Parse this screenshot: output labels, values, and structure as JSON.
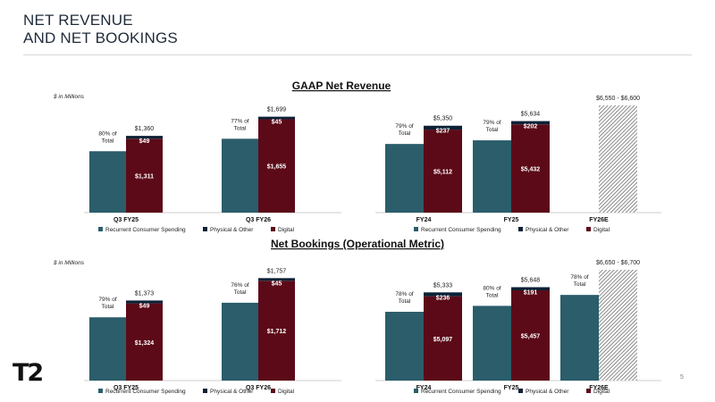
{
  "title": {
    "line1": "NET REVENUE",
    "line2": "AND NET BOOKINGS"
  },
  "logo": "T2",
  "page_number": "5",
  "colors": {
    "recurrent": "#2b5d6b",
    "physical": "#0c2136",
    "digital": "#5c0a18",
    "hatch": "#6d6d6d"
  },
  "sections": [
    {
      "heading": "GAAP Net Revenue",
      "units": "$ in Millions"
    },
    {
      "heading": "Net Bookings (Operational Metric)",
      "units": "$ in Millions"
    }
  ],
  "legend": [
    "Recurrent Consumer Spending",
    "Physical & Other",
    "Digital"
  ],
  "chart_data": [
    {
      "id": "rev-q",
      "type": "bar",
      "section": 0,
      "ymax": 1900,
      "categories": [
        "Q3 FY25",
        "Q3 FY26"
      ],
      "recurrent": [
        1088,
        1309
      ],
      "digital": [
        1311,
        1655
      ],
      "physical": [
        49,
        45
      ],
      "totals": [
        "$1,360",
        "$1,699"
      ],
      "pct": [
        "80% of Total",
        "77% of Total"
      ],
      "digital_labels": [
        "$1,311",
        "$1,655"
      ],
      "physical_labels": [
        "$49",
        "$45"
      ]
    },
    {
      "id": "rev-fy",
      "type": "bar",
      "section": 0,
      "ymax": 6600,
      "categories": [
        "FY24",
        "FY25",
        "FY26E"
      ],
      "recurrent": [
        4227,
        4451,
        null
      ],
      "digital": [
        5112,
        5432,
        null
      ],
      "physical": [
        237,
        202,
        null
      ],
      "totals": [
        "$5,350",
        "$5,634",
        null
      ],
      "pct": [
        "79% of Total",
        "79% of Total",
        null
      ],
      "digital_labels": [
        "$5,112",
        "$5,432",
        null
      ],
      "physical_labels": [
        "$237",
        "$202",
        null
      ],
      "guidance": {
        "index": 2,
        "low": 6550,
        "high": 6600,
        "label": "$6,550 - $6,600"
      }
    },
    {
      "id": "nb-q",
      "type": "bar",
      "section": 1,
      "ymax": 1900,
      "categories": [
        "Q3 FY25",
        "Q3 FY26"
      ],
      "recurrent": [
        1085,
        1335
      ],
      "digital": [
        1324,
        1712
      ],
      "physical": [
        49,
        45
      ],
      "totals": [
        "$1,373",
        "$1,757"
      ],
      "pct": [
        "79% of Total",
        "76% of Total"
      ],
      "digital_labels": [
        "$1,324",
        "$1,712"
      ],
      "physical_labels": [
        "$49",
        "$45"
      ]
    },
    {
      "id": "nb-fy",
      "type": "bar",
      "section": 1,
      "ymax": 6700,
      "categories": [
        "FY24",
        "FY25",
        "FY26E"
      ],
      "recurrent": [
        4160,
        4518,
        5180
      ],
      "digital": [
        5097,
        5457,
        null
      ],
      "physical": [
        236,
        191,
        null
      ],
      "totals": [
        "$5,333",
        "$5,648",
        null
      ],
      "pct": [
        "78% of Total",
        "80% of Total",
        "78% of Total"
      ],
      "digital_labels": [
        "$5,097",
        "$5,457",
        null
      ],
      "physical_labels": [
        "$236",
        "$191",
        null
      ],
      "guidance": {
        "index": 2,
        "low": 6650,
        "high": 6700,
        "label": "$6,650 - $6,700"
      }
    }
  ]
}
